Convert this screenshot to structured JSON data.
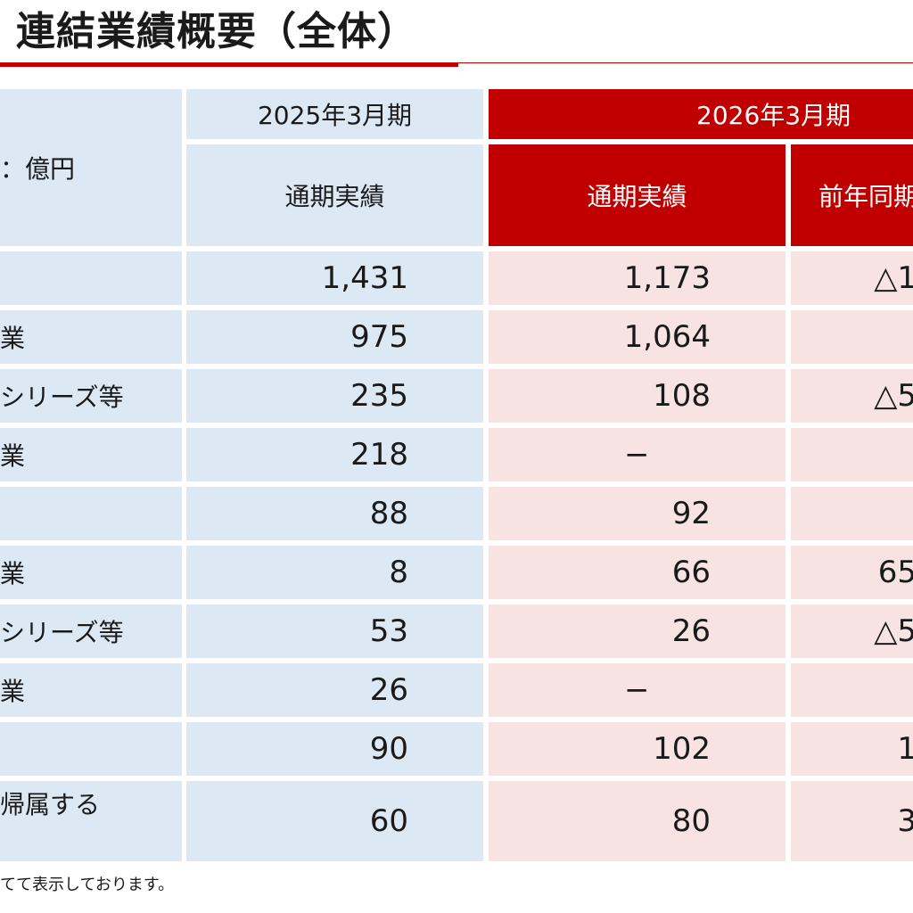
{
  "header": {
    "title": "連結業績概要（全体）"
  },
  "table": {
    "unit_label": "：億円",
    "fy2025_header": "2025年3月期",
    "fy2026_header": "2026年3月期",
    "col_fy2025_actual": "通期実績",
    "col_fy2026_actual": "通期実績",
    "col_yoy": "前年同期",
    "rows": [
      {
        "label": "",
        "fy2025": "1,431",
        "fy2026": "1,173",
        "yoy": "△1"
      },
      {
        "label": "業",
        "fy2025": "975",
        "fy2026": "1,064",
        "yoy": ""
      },
      {
        "label": "シリーズ等",
        "fy2025": "235",
        "fy2026": "108",
        "yoy": "△5"
      },
      {
        "label": "業",
        "fy2025": "218",
        "fy2026": "−",
        "yoy": ""
      },
      {
        "label": "",
        "fy2025": "88",
        "fy2026": "92",
        "yoy": ""
      },
      {
        "label": "業",
        "fy2025": "8",
        "fy2026": "66",
        "yoy": "65"
      },
      {
        "label": "シリーズ等",
        "fy2025": "53",
        "fy2026": "26",
        "yoy": "△5"
      },
      {
        "label": "業",
        "fy2025": "26",
        "fy2026": "−",
        "yoy": ""
      },
      {
        "label": "",
        "fy2025": "90",
        "fy2026": "102",
        "yoy": "1"
      },
      {
        "label": "帰属する",
        "fy2025": "60",
        "fy2026": "80",
        "yoy": "3"
      }
    ]
  },
  "footnote": "てて表示しております。"
}
